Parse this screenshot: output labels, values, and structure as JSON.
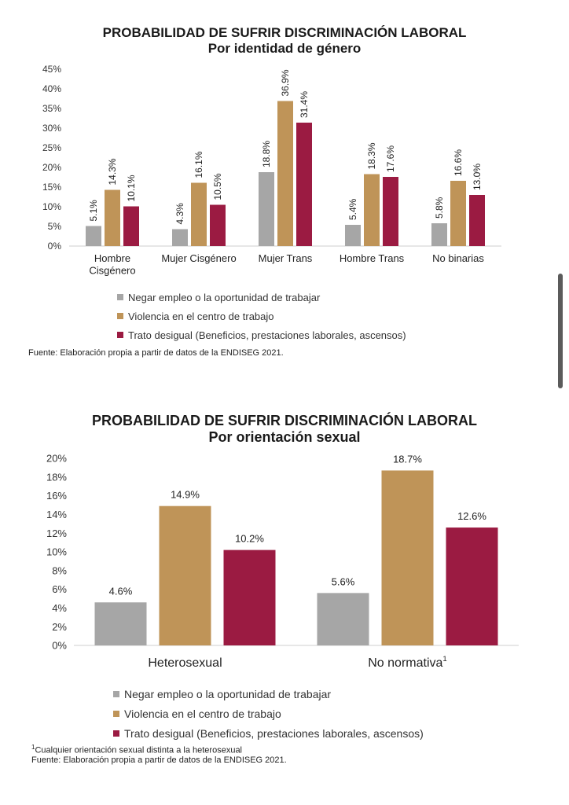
{
  "chart_data": [
    {
      "type": "bar",
      "title": "PROBABILIDAD DE SUFRIR DISCRIMINACIÓN LABORAL",
      "subtitle": "Por identidad de género",
      "categories": [
        "Hombre\nCisgénero",
        "Mujer Cisgénero",
        "Mujer Trans",
        "Hombre Trans",
        "No binarias"
      ],
      "series": [
        {
          "name": "Negar empleo o la oportunidad de trabajar",
          "color": "#a6a6a6",
          "values": [
            5.1,
            4.3,
            18.8,
            5.4,
            5.8
          ]
        },
        {
          "name": "Violencia en el centro de trabajo",
          "color": "#bf9458",
          "values": [
            14.3,
            16.1,
            36.9,
            18.3,
            16.6
          ]
        },
        {
          "name": "Trato desigual (Beneficios, prestaciones laborales, ascensos)",
          "color": "#9b1b42",
          "values": [
            10.1,
            10.5,
            31.4,
            17.6,
            13.0
          ]
        }
      ],
      "yticks": [
        "0%",
        "5%",
        "10%",
        "15%",
        "20%",
        "25%",
        "30%",
        "35%",
        "40%",
        "45%"
      ],
      "ylim": [
        0,
        45
      ],
      "data_label_suffix": "%",
      "data_label_decimals": 1,
      "data_label_rotation": "vertical",
      "legend_position": "bottom",
      "grid": false,
      "source": "Fuente: Elaboración propia a partir de datos de la ENDISEG 2021."
    },
    {
      "type": "bar",
      "title": "PROBABILIDAD DE SUFRIR DISCRIMINACIÓN LABORAL",
      "subtitle": "Por orientación sexual",
      "categories": [
        "Heterosexual",
        "No normativa"
      ],
      "category_superscripts": [
        "",
        "1"
      ],
      "series": [
        {
          "name": "Negar empleo o la oportunidad de trabajar",
          "color": "#a6a6a6",
          "values": [
            4.6,
            5.6
          ]
        },
        {
          "name": "Violencia en el centro de trabajo",
          "color": "#bf9458",
          "values": [
            14.9,
            18.7
          ]
        },
        {
          "name": "Trato desigual (Beneficios, prestaciones laborales, ascensos)",
          "color": "#9b1b42",
          "values": [
            10.2,
            12.6
          ]
        }
      ],
      "yticks": [
        "0%",
        "2%",
        "4%",
        "6%",
        "8%",
        "10%",
        "12%",
        "14%",
        "16%",
        "18%",
        "20%"
      ],
      "ylim": [
        0,
        20
      ],
      "data_label_suffix": "%",
      "data_label_decimals": 1,
      "data_label_rotation": "horizontal",
      "legend_position": "bottom",
      "grid": false,
      "footnote_marker": "1",
      "footnote": "Cualquier orientación sexual distinta a la heterosexual",
      "source": "Fuente: Elaboración propia a partir de datos de la ENDISEG 2021."
    }
  ]
}
